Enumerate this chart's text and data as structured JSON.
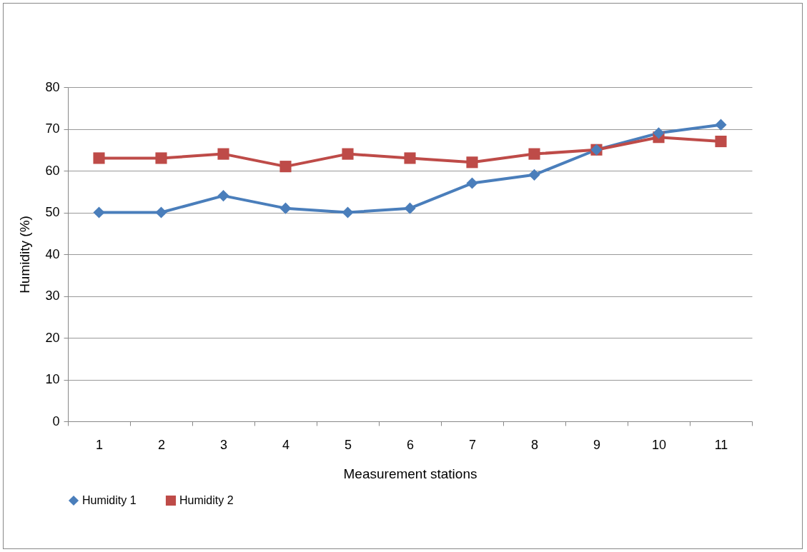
{
  "chart_data": {
    "type": "line",
    "xlabel": "Measurement stations",
    "ylabel": "Humidity (%)",
    "categories": [
      "1",
      "2",
      "3",
      "4",
      "5",
      "6",
      "7",
      "8",
      "9",
      "10",
      "11"
    ],
    "series": [
      {
        "name": "Humidity 1",
        "color": "#4a7ebb",
        "marker": "diamond",
        "values": [
          50,
          50,
          54,
          51,
          50,
          51,
          57,
          59,
          65,
          69,
          71
        ]
      },
      {
        "name": "Humidity 2",
        "color": "#be4b48",
        "marker": "square",
        "values": [
          63,
          63,
          64,
          61,
          64,
          63,
          62,
          64,
          65,
          68,
          67
        ]
      }
    ],
    "ylim": [
      0,
      80
    ],
    "yticks": [
      0,
      10,
      20,
      30,
      40,
      50,
      60,
      70,
      80
    ],
    "grid": "y",
    "legend": "bottom",
    "line_style": "solid"
  }
}
